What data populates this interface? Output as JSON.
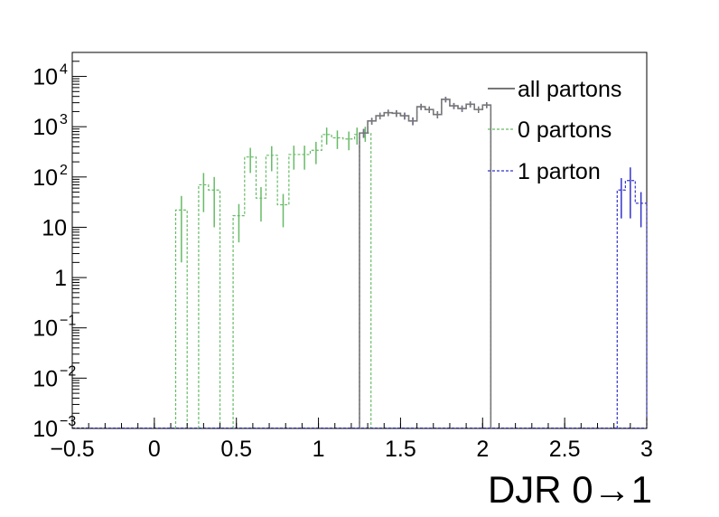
{
  "chart_data": {
    "type": "line",
    "xlabel": "DJR 0→1",
    "ylabel": "",
    "xlim": [
      -0.5,
      3.0
    ],
    "ylim": [
      0.001,
      30000
    ],
    "y_scale": "log",
    "grid": false,
    "legend_position": "top-right",
    "x_ticks": [
      "−0.5",
      "0",
      "0.5",
      "1",
      "1.5",
      "2",
      "2.5",
      "3"
    ],
    "x_tick_values": [
      -0.5,
      0,
      0.5,
      1,
      1.5,
      2,
      2.5,
      3
    ],
    "y_ticks": [
      {
        "value": 0.001,
        "base": "10",
        "exp": "−3"
      },
      {
        "value": 0.01,
        "base": "10",
        "exp": "−2"
      },
      {
        "value": 0.1,
        "base": "10",
        "exp": "−1"
      },
      {
        "value": 1,
        "base": "1",
        "exp": ""
      },
      {
        "value": 10,
        "base": "10",
        "exp": ""
      },
      {
        "value": 100,
        "base": "10",
        "exp": "2"
      },
      {
        "value": 1000,
        "base": "10",
        "exp": "3"
      },
      {
        "value": 10000,
        "base": "10",
        "exp": "4"
      }
    ],
    "series": [
      {
        "name": "all partons",
        "color": "#777777",
        "style": "solid",
        "bins": [
          {
            "x0": 1.25,
            "x1": 1.3,
            "y": 750
          },
          {
            "x0": 1.3,
            "x1": 1.35,
            "y": 1300
          },
          {
            "x0": 1.35,
            "x1": 1.4,
            "y": 1650
          },
          {
            "x0": 1.4,
            "x1": 1.45,
            "y": 1900
          },
          {
            "x0": 1.45,
            "x1": 1.5,
            "y": 1850
          },
          {
            "x0": 1.5,
            "x1": 1.55,
            "y": 1650
          },
          {
            "x0": 1.55,
            "x1": 1.6,
            "y": 1300
          },
          {
            "x0": 1.6,
            "x1": 1.65,
            "y": 2500
          },
          {
            "x0": 1.65,
            "x1": 1.7,
            "y": 2200
          },
          {
            "x0": 1.7,
            "x1": 1.75,
            "y": 1750
          },
          {
            "x0": 1.75,
            "x1": 1.8,
            "y": 3500
          },
          {
            "x0": 1.8,
            "x1": 1.85,
            "y": 2600
          },
          {
            "x0": 1.85,
            "x1": 1.9,
            "y": 2300
          },
          {
            "x0": 1.9,
            "x1": 1.95,
            "y": 2800
          },
          {
            "x0": 1.95,
            "x1": 2.0,
            "y": 2200
          },
          {
            "x0": 2.0,
            "x1": 2.05,
            "y": 2700
          }
        ],
        "errors": [
          150,
          200,
          250,
          280,
          280,
          260,
          230,
          350,
          320,
          280,
          450,
          360,
          330,
          380,
          320,
          360
        ]
      },
      {
        "name": "0 partons",
        "color": "#66bb66",
        "style": "dashed",
        "bins": [
          {
            "x0": 0.13,
            "x1": 0.2,
            "y": 22
          },
          {
            "x0": 0.27,
            "x1": 0.33,
            "y": 70
          },
          {
            "x0": 0.33,
            "x1": 0.4,
            "y": 55
          },
          {
            "x0": 0.48,
            "x1": 0.55,
            "y": 17
          },
          {
            "x0": 0.55,
            "x1": 0.62,
            "y": 250
          },
          {
            "x0": 0.62,
            "x1": 0.68,
            "y": 38
          },
          {
            "x0": 0.68,
            "x1": 0.75,
            "y": 270
          },
          {
            "x0": 0.75,
            "x1": 0.82,
            "y": 28
          },
          {
            "x0": 0.82,
            "x1": 0.88,
            "y": 280
          },
          {
            "x0": 0.88,
            "x1": 0.95,
            "y": 280
          },
          {
            "x0": 0.95,
            "x1": 1.02,
            "y": 340
          },
          {
            "x0": 1.02,
            "x1": 1.08,
            "y": 700
          },
          {
            "x0": 1.08,
            "x1": 1.15,
            "y": 600
          },
          {
            "x0": 1.15,
            "x1": 1.22,
            "y": 570
          },
          {
            "x0": 1.22,
            "x1": 1.25,
            "y": 700
          },
          {
            "x0": 1.25,
            "x1": 1.32,
            "y": 750
          }
        ],
        "errors": [
          20,
          50,
          45,
          12,
          130,
          25,
          140,
          18,
          140,
          140,
          160,
          260,
          240,
          230,
          260,
          250
        ]
      },
      {
        "name": "1 parton",
        "color": "#3333cc",
        "style": "dashed",
        "bins": [
          {
            "x0": 1.25,
            "x1": 1.3,
            "y": 750
          },
          {
            "x0": 1.3,
            "x1": 1.35,
            "y": 1300
          },
          {
            "x0": 1.35,
            "x1": 1.4,
            "y": 1650
          },
          {
            "x0": 1.4,
            "x1": 1.45,
            "y": 1900
          },
          {
            "x0": 1.45,
            "x1": 1.5,
            "y": 1850
          },
          {
            "x0": 1.5,
            "x1": 1.55,
            "y": 1650
          },
          {
            "x0": 1.55,
            "x1": 1.6,
            "y": 1300
          },
          {
            "x0": 1.6,
            "x1": 1.65,
            "y": 2500
          },
          {
            "x0": 1.65,
            "x1": 1.7,
            "y": 2200
          },
          {
            "x0": 1.7,
            "x1": 1.75,
            "y": 1750
          },
          {
            "x0": 1.75,
            "x1": 1.8,
            "y": 3500
          },
          {
            "x0": 1.8,
            "x1": 1.85,
            "y": 2600
          },
          {
            "x0": 1.85,
            "x1": 1.9,
            "y": 2300
          },
          {
            "x0": 1.9,
            "x1": 1.95,
            "y": 2800
          },
          {
            "x0": 1.95,
            "x1": 2.0,
            "y": 2200
          },
          {
            "x0": 2.0,
            "x1": 2.05,
            "y": 2700
          },
          {
            "x0": 2.82,
            "x1": 2.87,
            "y": 55
          },
          {
            "x0": 2.87,
            "x1": 2.93,
            "y": 85
          },
          {
            "x0": 2.93,
            "x1": 3.0,
            "y": 30
          }
        ],
        "errors": [
          150,
          200,
          250,
          280,
          280,
          260,
          230,
          350,
          320,
          280,
          450,
          360,
          330,
          380,
          320,
          360,
          40,
          70,
          20
        ]
      }
    ]
  }
}
